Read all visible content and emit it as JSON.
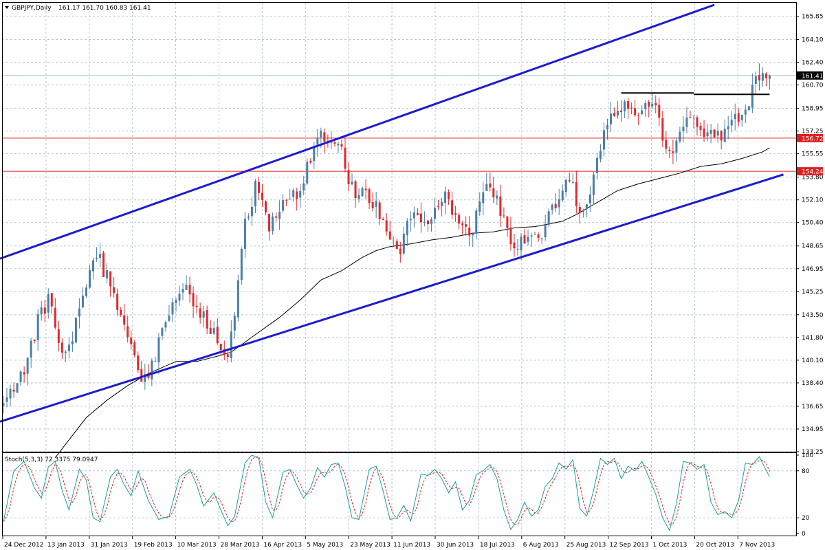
{
  "chart_data": {
    "type": "candlestick",
    "symbol": "GBPJPY,Daily",
    "ohlc_header": "161.17 161.70 160.83 161.41",
    "last_price_label": "161.41",
    "colors": {
      "bull": "#4a7ea8",
      "bear": "#e0282c",
      "channel": "#1c1ccf",
      "level": "#e02020",
      "ma": "#000000",
      "stoch_main": "#1a9d9a",
      "stoch_signal": "#e02020",
      "grid": "#b4c8d4",
      "last_price_line": "#a8c8e0"
    },
    "price_axis": {
      "min": 133.25,
      "max": 166.7,
      "ticks": [
        "165.85",
        "164.10",
        "162.40",
        "160.70",
        "158.95",
        "157.25",
        "155.55",
        "153.80",
        "152.10",
        "150.40",
        "148.65",
        "146.95",
        "145.25",
        "143.50",
        "141.80",
        "140.10",
        "138.40",
        "136.65",
        "134.95",
        "133.25"
      ]
    },
    "x_axis_labels": [
      "24 Dec 2012",
      "13 Jan 2013",
      "31 Jan 2013",
      "19 Feb 2013",
      "10 Mar 2013",
      "28 Mar 2013",
      "16 Apr 2013",
      "5 May 2013",
      "23 May 2013",
      "11 Jun 2013",
      "30 Jun 2013",
      "18 Jul 2013",
      "6 Aug 2013",
      "25 Aug 2013",
      "12 Sep 2013",
      "1 Oct 2013",
      "20 Oct 2013",
      "7 Nov 2013"
    ],
    "horizontal_levels": [
      {
        "label": "156.72",
        "value": 156.72
      },
      {
        "label": "154.24",
        "value": 154.24
      }
    ],
    "channel_lines": [
      {
        "start": {
          "bar": -1,
          "price": 147.7
        },
        "end": {
          "bar": 206,
          "price": 166.7
        }
      },
      {
        "start": {
          "bar": -1,
          "price": 135.5
        },
        "end": {
          "bar": 226,
          "price": 154.0
        }
      }
    ],
    "resistance_segments": [
      {
        "start_bar": 179,
        "end_bar": 200,
        "price": 160.1
      },
      {
        "start_bar": 200,
        "end_bar": 222,
        "price": 160.0
      }
    ],
    "price_waypoints": [
      [
        0,
        136.6
      ],
      [
        6,
        139.5
      ],
      [
        10,
        143.0
      ],
      [
        13,
        144.6
      ],
      [
        18,
        140.2
      ],
      [
        23,
        144.8
      ],
      [
        26,
        148.0
      ],
      [
        28,
        147.5
      ],
      [
        35,
        143.2
      ],
      [
        40,
        138.0
      ],
      [
        44,
        140.5
      ],
      [
        48,
        143.7
      ],
      [
        53,
        145.2
      ],
      [
        58,
        143.5
      ],
      [
        63,
        141.2
      ],
      [
        65,
        140.6
      ],
      [
        67,
        144.0
      ],
      [
        70,
        150.4
      ],
      [
        73,
        153.0
      ],
      [
        77,
        150.0
      ],
      [
        81,
        152.2
      ],
      [
        85,
        152.4
      ],
      [
        88,
        154.5
      ],
      [
        92,
        156.7
      ],
      [
        98,
        156.0
      ],
      [
        100,
        153.0
      ],
      [
        104,
        152.6
      ],
      [
        108,
        151.8
      ],
      [
        112,
        149.3
      ],
      [
        115,
        148.5
      ],
      [
        118,
        150.9
      ],
      [
        121,
        150.2
      ],
      [
        125,
        151.2
      ],
      [
        128,
        152.4
      ],
      [
        131,
        150.8
      ],
      [
        135,
        149.3
      ],
      [
        138,
        151.5
      ],
      [
        141,
        153.4
      ],
      [
        144,
        151.5
      ],
      [
        147,
        149.2
      ],
      [
        149,
        148.5
      ],
      [
        153,
        149.8
      ],
      [
        156,
        149.5
      ],
      [
        160,
        151.8
      ],
      [
        163,
        153.4
      ],
      [
        165,
        153.6
      ],
      [
        167,
        150.7
      ],
      [
        169,
        151.4
      ],
      [
        171,
        153.5
      ],
      [
        174,
        157.0
      ],
      [
        176,
        158.4
      ],
      [
        178,
        158.6
      ],
      [
        181,
        159.2
      ],
      [
        184,
        158.6
      ],
      [
        187,
        159.6
      ],
      [
        190,
        158.5
      ],
      [
        191,
        156.7
      ],
      [
        193,
        155.5
      ],
      [
        196,
        157.5
      ],
      [
        199,
        158.3
      ],
      [
        201,
        157.8
      ],
      [
        203,
        157.3
      ],
      [
        206,
        157.3
      ],
      [
        208,
        157.0
      ],
      [
        211,
        157.8
      ],
      [
        214,
        158.5
      ],
      [
        216,
        159.5
      ],
      [
        218,
        160.8
      ],
      [
        220,
        161.2
      ],
      [
        222,
        161.41
      ]
    ],
    "ma_waypoints": [
      [
        15,
        132.8
      ],
      [
        24,
        135.8
      ],
      [
        30,
        137.1
      ],
      [
        36,
        138.2
      ],
      [
        42,
        139.1
      ],
      [
        50,
        140.0
      ],
      [
        56,
        140.0
      ],
      [
        62,
        140.4
      ],
      [
        66,
        140.7
      ],
      [
        74,
        142.2
      ],
      [
        80,
        143.3
      ],
      [
        86,
        144.6
      ],
      [
        92,
        146.1
      ],
      [
        98,
        146.8
      ],
      [
        104,
        147.8
      ],
      [
        108,
        148.3
      ],
      [
        112,
        148.6
      ],
      [
        118,
        148.8
      ],
      [
        124,
        149.1
      ],
      [
        130,
        149.3
      ],
      [
        136,
        149.6
      ],
      [
        142,
        149.7
      ],
      [
        148,
        150.0
      ],
      [
        154,
        150.1
      ],
      [
        158,
        150.3
      ],
      [
        162,
        150.5
      ],
      [
        166,
        151.0
      ],
      [
        170,
        151.6
      ],
      [
        174,
        152.2
      ],
      [
        178,
        152.8
      ],
      [
        184,
        153.3
      ],
      [
        190,
        153.7
      ],
      [
        196,
        154.1
      ],
      [
        202,
        154.6
      ],
      [
        208,
        154.8
      ],
      [
        214,
        155.2
      ],
      [
        220,
        155.7
      ],
      [
        222,
        156.0
      ]
    ],
    "stochastic": {
      "label": "Stoch(5,3,3) 72.3375 79.0947",
      "params": "5,3,3",
      "main": 72.3375,
      "signal": 79.0947,
      "axis_ticks": [
        "100",
        "80",
        "20",
        "0"
      ],
      "waypoints": [
        [
          0,
          15
        ],
        [
          3,
          80
        ],
        [
          6,
          92
        ],
        [
          9,
          58
        ],
        [
          11,
          45
        ],
        [
          13,
          85
        ],
        [
          15,
          92
        ],
        [
          17,
          55
        ],
        [
          19,
          30
        ],
        [
          22,
          82
        ],
        [
          24,
          68
        ],
        [
          26,
          20
        ],
        [
          28,
          15
        ],
        [
          31,
          72
        ],
        [
          33,
          82
        ],
        [
          35,
          62
        ],
        [
          37,
          48
        ],
        [
          39,
          80
        ],
        [
          42,
          42
        ],
        [
          45,
          18
        ],
        [
          48,
          22
        ],
        [
          51,
          72
        ],
        [
          54,
          82
        ],
        [
          56,
          62
        ],
        [
          58,
          35
        ],
        [
          61,
          52
        ],
        [
          63,
          30
        ],
        [
          65,
          10
        ],
        [
          67,
          22
        ],
        [
          70,
          90
        ],
        [
          72,
          100
        ],
        [
          74,
          96
        ],
        [
          76,
          40
        ],
        [
          78,
          20
        ],
        [
          81,
          78
        ],
        [
          83,
          82
        ],
        [
          85,
          62
        ],
        [
          87,
          45
        ],
        [
          89,
          58
        ],
        [
          91,
          84
        ],
        [
          93,
          72
        ],
        [
          95,
          88
        ],
        [
          97,
          90
        ],
        [
          99,
          60
        ],
        [
          101,
          20
        ],
        [
          103,
          18
        ],
        [
          106,
          82
        ],
        [
          108,
          86
        ],
        [
          110,
          54
        ],
        [
          112,
          18
        ],
        [
          114,
          20
        ],
        [
          116,
          36
        ],
        [
          118,
          16
        ],
        [
          121,
          76
        ],
        [
          123,
          74
        ],
        [
          125,
          82
        ],
        [
          127,
          70
        ],
        [
          129,
          52
        ],
        [
          131,
          66
        ],
        [
          133,
          30
        ],
        [
          135,
          42
        ],
        [
          137,
          75
        ],
        [
          139,
          80
        ],
        [
          141,
          88
        ],
        [
          143,
          70
        ],
        [
          145,
          30
        ],
        [
          147,
          5
        ],
        [
          149,
          18
        ],
        [
          151,
          40
        ],
        [
          153,
          22
        ],
        [
          155,
          30
        ],
        [
          157,
          60
        ],
        [
          159,
          70
        ],
        [
          161,
          90
        ],
        [
          163,
          82
        ],
        [
          165,
          94
        ],
        [
          167,
          32
        ],
        [
          169,
          22
        ],
        [
          171,
          55
        ],
        [
          173,
          96
        ],
        [
          175,
          88
        ],
        [
          177,
          96
        ],
        [
          179,
          70
        ],
        [
          181,
          86
        ],
        [
          183,
          80
        ],
        [
          185,
          92
        ],
        [
          187,
          72
        ],
        [
          189,
          50
        ],
        [
          191,
          20
        ],
        [
          193,
          4
        ],
        [
          195,
          38
        ],
        [
          197,
          92
        ],
        [
          199,
          90
        ],
        [
          201,
          82
        ],
        [
          203,
          88
        ],
        [
          205,
          40
        ],
        [
          207,
          24
        ],
        [
          209,
          28
        ],
        [
          211,
          20
        ],
        [
          213,
          42
        ],
        [
          215,
          90
        ],
        [
          217,
          88
        ],
        [
          219,
          98
        ],
        [
          222,
          72
        ]
      ]
    }
  }
}
